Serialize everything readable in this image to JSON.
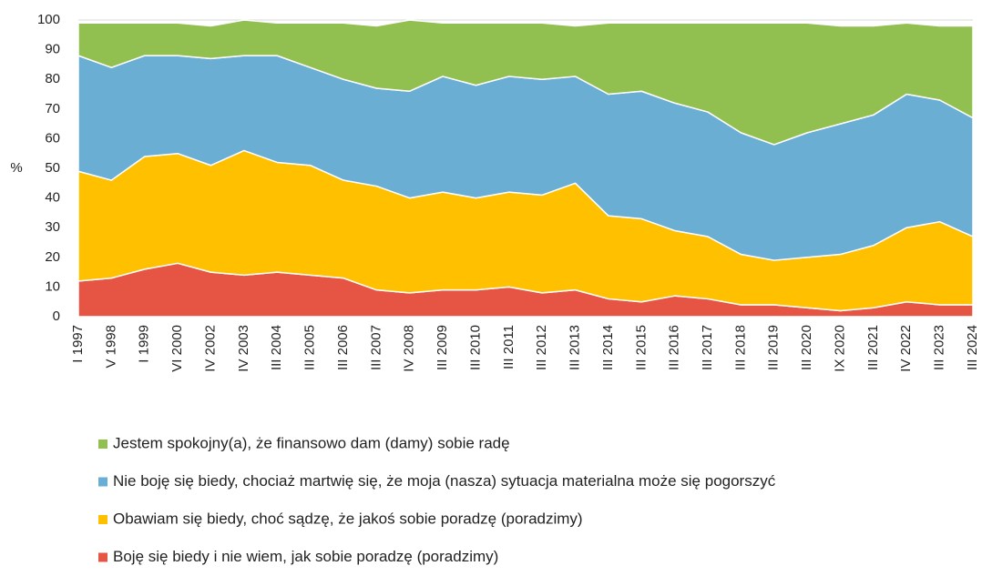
{
  "chart_data": {
    "type": "stacked-area",
    "y_label": "%",
    "categories": [
      "I 1997",
      "V 1998",
      "I 1999",
      "VI 2000",
      "IV 2002",
      "IV 2003",
      "III 2004",
      "III 2005",
      "III 2006",
      "III 2007",
      "IV 2008",
      "III 2009",
      "III 2010",
      "III 2011",
      "III 2012",
      "III 2013",
      "III 2014",
      "III 2015",
      "III 2016",
      "III 2017",
      "III 2018",
      "III 2019",
      "III 2020",
      "IX 2020",
      "III 2021",
      "IV 2022",
      "III 2023",
      "III 2024"
    ],
    "series": [
      {
        "name": "Boję się biedy i nie wiem, jak sobie poradzę (poradzimy)",
        "color": "#e65444",
        "values": [
          12,
          13,
          16,
          18,
          15,
          14,
          15,
          14,
          13,
          9,
          8,
          9,
          9,
          10,
          8,
          9,
          6,
          5,
          7,
          6,
          4,
          4,
          3,
          2,
          3,
          5,
          4,
          4
        ]
      },
      {
        "name": "Obawiam się biedy, choć sądzę, że jakoś sobie poradzę (poradzimy)",
        "color": "#ffc000",
        "values": [
          37,
          33,
          38,
          37,
          36,
          42,
          37,
          37,
          33,
          35,
          32,
          33,
          31,
          32,
          33,
          36,
          28,
          28,
          22,
          21,
          17,
          15,
          17,
          19,
          21,
          25,
          28,
          23
        ]
      },
      {
        "name": "Nie boję się biedy, chociaż martwię się, że moja (nasza) sytuacja materialna może się pogorszyć",
        "color": "#6baed4",
        "values": [
          39,
          38,
          34,
          33,
          36,
          32,
          36,
          33,
          34,
          33,
          36,
          39,
          38,
          39,
          39,
          36,
          41,
          43,
          43,
          42,
          41,
          39,
          42,
          44,
          44,
          45,
          41,
          40
        ]
      },
      {
        "name": "Jestem spokojny(a), że finansowo dam (damy) sobie radę",
        "color": "#92c050",
        "values": [
          11,
          15,
          11,
          11,
          11,
          12,
          11,
          15,
          19,
          21,
          24,
          18,
          21,
          18,
          19,
          17,
          24,
          23,
          27,
          30,
          37,
          41,
          37,
          33,
          30,
          24,
          25,
          31
        ]
      }
    ],
    "ylim": [
      0,
      100
    ],
    "yticks": [
      0,
      10,
      20,
      30,
      40,
      50,
      60,
      70,
      80,
      90,
      100
    ],
    "grid": true,
    "legend": "bottom"
  }
}
